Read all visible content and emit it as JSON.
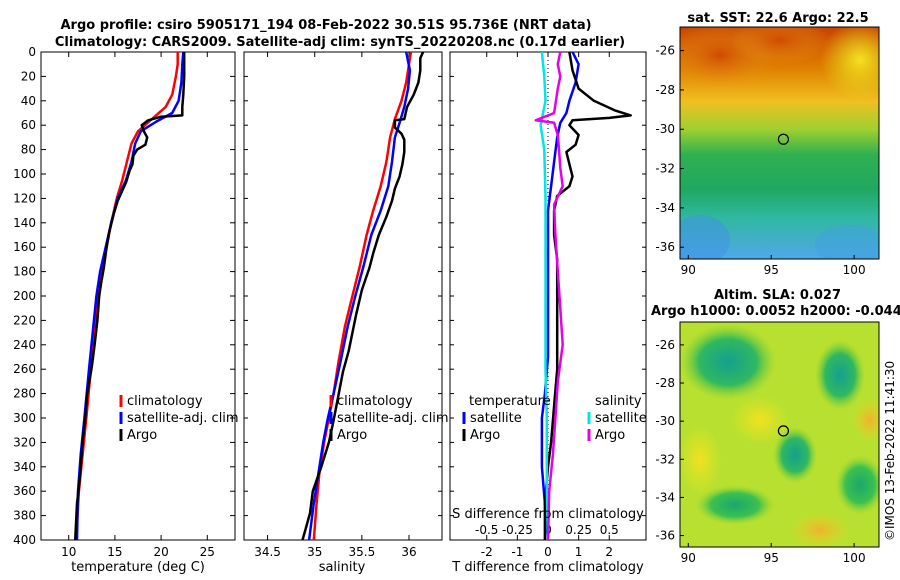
{
  "header": {
    "title_line1": "Argo profile: csiro 5905171_194 08-Feb-2022 30.51S 95.736E (NRT data)",
    "title_line2": "Climatology: CARS2009. Satellite-adj clim: synTS_20220208.nc (0.17d earlier)",
    "copyright": "©IMOS 13-Feb-2022 11:41:30"
  },
  "colors": {
    "climatology": "#ff0000",
    "satellite": "#0000ff",
    "argo": "#000000",
    "sat_s": "#00e5e5",
    "argo_s": "#e600e6"
  },
  "chart_data": [
    {
      "id": "temperature",
      "type": "line",
      "xlabel": "temperature (deg C)",
      "ylabel": "",
      "xlim": [
        7,
        28
      ],
      "ylim": [
        400,
        0
      ],
      "xticks": [
        10,
        15,
        20,
        25
      ],
      "yticks": [
        0,
        20,
        40,
        60,
        80,
        100,
        120,
        140,
        160,
        180,
        200,
        220,
        240,
        260,
        280,
        300,
        320,
        340,
        360,
        380,
        400
      ],
      "legend": {
        "placement": "right",
        "entries": [
          "climatology",
          "satellite-adj. clim",
          "Argo"
        ]
      },
      "series": [
        {
          "name": "climatology",
          "color": "#ff0000",
          "points": [
            [
              21.8,
              0
            ],
            [
              21.8,
              10
            ],
            [
              21.6,
              20
            ],
            [
              21.2,
              35
            ],
            [
              20.5,
              45
            ],
            [
              19.0,
              55
            ],
            [
              17.5,
              65
            ],
            [
              16.8,
              75
            ],
            [
              16.3,
              90
            ],
            [
              15.8,
              105
            ],
            [
              15.2,
              120
            ],
            [
              14.6,
              140
            ],
            [
              14.1,
              160
            ],
            [
              13.6,
              180
            ],
            [
              13.2,
              200
            ],
            [
              12.8,
              230
            ],
            [
              12.4,
              260
            ],
            [
              11.9,
              300
            ],
            [
              11.5,
              330
            ],
            [
              11.1,
              360
            ],
            [
              10.8,
              400
            ]
          ]
        },
        {
          "name": "satellite-adj. clim",
          "color": "#0000ff",
          "points": [
            [
              22.4,
              0
            ],
            [
              22.3,
              10
            ],
            [
              22.2,
              25
            ],
            [
              21.9,
              40
            ],
            [
              21.2,
              50
            ],
            [
              19.5,
              57
            ],
            [
              17.8,
              65
            ],
            [
              17.2,
              75
            ],
            [
              16.8,
              90
            ],
            [
              16.2,
              105
            ],
            [
              15.3,
              120
            ],
            [
              14.6,
              140
            ],
            [
              14.0,
              160
            ],
            [
              13.4,
              180
            ],
            [
              13.0,
              200
            ],
            [
              12.6,
              230
            ],
            [
              12.2,
              260
            ],
            [
              11.7,
              300
            ],
            [
              11.3,
              330
            ],
            [
              11.0,
              360
            ],
            [
              10.9,
              400
            ]
          ]
        },
        {
          "name": "Argo",
          "color": "#000000",
          "points": [
            [
              22.5,
              0
            ],
            [
              22.5,
              20
            ],
            [
              22.4,
              35
            ],
            [
              22.3,
              45
            ],
            [
              22.3,
              52
            ],
            [
              20.0,
              53
            ],
            [
              18.6,
              56
            ],
            [
              17.9,
              60
            ],
            [
              18.2,
              66
            ],
            [
              18.5,
              70
            ],
            [
              18.3,
              76
            ],
            [
              17.4,
              80
            ],
            [
              17.0,
              85
            ],
            [
              16.9,
              92
            ],
            [
              16.6,
              97
            ],
            [
              16.2,
              107
            ],
            [
              15.9,
              112
            ],
            [
              15.3,
              122
            ],
            [
              14.9,
              132
            ],
            [
              14.4,
              147
            ],
            [
              14.1,
              160
            ],
            [
              13.8,
              177
            ],
            [
              13.5,
              190
            ],
            [
              13.3,
              200
            ],
            [
              13.1,
              220
            ],
            [
              12.8,
              240
            ],
            [
              12.5,
              258
            ],
            [
              12.0,
              280
            ],
            [
              11.8,
              300
            ],
            [
              11.5,
              320
            ],
            [
              11.3,
              340
            ],
            [
              11.1,
              357
            ],
            [
              10.9,
              370
            ],
            [
              10.8,
              385
            ],
            [
              10.7,
              400
            ]
          ]
        }
      ]
    },
    {
      "id": "salinity",
      "type": "line",
      "xlabel": "salinity",
      "xlim": [
        34.25,
        36.35
      ],
      "ylim": [
        400,
        0
      ],
      "xticks": [
        34.5,
        35,
        35.5,
        36
      ],
      "xtick_labels": [
        "34.5",
        "35",
        "35.5",
        "36"
      ],
      "legend": {
        "placement": "right",
        "entries": [
          "climatology",
          "satellite-adj. clim",
          "Argo"
        ]
      },
      "series": [
        {
          "name": "climatology",
          "color": "#ff0000",
          "points": [
            [
              36.02,
              0
            ],
            [
              36.0,
              10
            ],
            [
              35.97,
              25
            ],
            [
              35.92,
              40
            ],
            [
              35.85,
              55
            ],
            [
              35.8,
              70
            ],
            [
              35.76,
              90
            ],
            [
              35.7,
              110
            ],
            [
              35.62,
              130
            ],
            [
              35.55,
              150
            ],
            [
              35.48,
              175
            ],
            [
              35.4,
              200
            ],
            [
              35.32,
              225
            ],
            [
              35.25,
              255
            ],
            [
              35.2,
              280
            ],
            [
              35.15,
              300
            ],
            [
              35.1,
              320
            ],
            [
              35.05,
              345
            ],
            [
              35.02,
              370
            ],
            [
              34.99,
              400
            ]
          ]
        },
        {
          "name": "satellite-adj. clim",
          "color": "#0000ff",
          "points": [
            [
              35.97,
              0
            ],
            [
              36.01,
              15
            ],
            [
              35.99,
              30
            ],
            [
              35.95,
              45
            ],
            [
              35.9,
              58
            ],
            [
              35.85,
              70
            ],
            [
              35.82,
              90
            ],
            [
              35.78,
              110
            ],
            [
              35.7,
              130
            ],
            [
              35.6,
              150
            ],
            [
              35.52,
              175
            ],
            [
              35.43,
              200
            ],
            [
              35.35,
              225
            ],
            [
              35.27,
              255
            ],
            [
              35.2,
              280
            ],
            [
              35.14,
              300
            ],
            [
              35.09,
              320
            ],
            [
              35.04,
              345
            ],
            [
              34.99,
              370
            ],
            [
              34.94,
              400
            ]
          ]
        },
        {
          "name": "Argo",
          "color": "#000000",
          "points": [
            [
              36.15,
              0
            ],
            [
              36.12,
              5
            ],
            [
              36.12,
              15
            ],
            [
              36.1,
              25
            ],
            [
              36.05,
              35
            ],
            [
              35.98,
              45
            ],
            [
              35.95,
              55
            ],
            [
              35.85,
              56
            ],
            [
              35.85,
              62
            ],
            [
              35.92,
              67
            ],
            [
              35.95,
              72
            ],
            [
              35.95,
              82
            ],
            [
              35.93,
              92
            ],
            [
              35.9,
              102
            ],
            [
              35.85,
              112
            ],
            [
              35.82,
              122
            ],
            [
              35.76,
              135
            ],
            [
              35.68,
              150
            ],
            [
              35.62,
              165
            ],
            [
              35.58,
              177
            ],
            [
              35.5,
              195
            ],
            [
              35.44,
              215
            ],
            [
              35.36,
              245
            ],
            [
              35.3,
              262
            ],
            [
              35.25,
              282
            ],
            [
              35.2,
              302
            ],
            [
              35.15,
              320
            ],
            [
              35.07,
              340
            ],
            [
              34.98,
              360
            ],
            [
              34.95,
              378
            ],
            [
              34.9,
              392
            ],
            [
              34.87,
              400
            ]
          ]
        }
      ]
    },
    {
      "id": "differences",
      "type": "line",
      "xlabel": "T difference from climatology",
      "top_xlabel": "S difference from climatology",
      "xlim": [
        -3.2,
        3.2
      ],
      "ylim": [
        400,
        0
      ],
      "xticks": [
        -2,
        -1,
        0,
        1,
        2
      ],
      "top_xticks": [
        -0.5,
        -0.25,
        0,
        0.25,
        0.5
      ],
      "top_xtick_labels": [
        "-0.5",
        "-0.25",
        "0",
        "0.25",
        "0.5"
      ],
      "top_xlim": [
        -0.8,
        0.8
      ],
      "legend_t": {
        "heading": "temperature",
        "entries": [
          "satellite",
          "Argo"
        ]
      },
      "legend_s": {
        "heading": "salinity",
        "entries": [
          "satellite",
          "Argo"
        ]
      },
      "series": [
        {
          "name": "T satellite",
          "color": "#0000ff",
          "axis": "T",
          "points": [
            [
              0.8,
              0
            ],
            [
              1.0,
              10
            ],
            [
              0.9,
              25
            ],
            [
              0.7,
              40
            ],
            [
              0.6,
              50
            ],
            [
              0.4,
              58
            ],
            [
              0.3,
              70
            ],
            [
              0.2,
              90
            ],
            [
              0.1,
              110
            ],
            [
              0.0,
              130
            ],
            [
              0.0,
              180
            ],
            [
              0.0,
              250
            ],
            [
              -0.1,
              280
            ],
            [
              -0.2,
              300
            ],
            [
              -0.2,
              340
            ],
            [
              -0.1,
              370
            ],
            [
              0.0,
              400
            ]
          ]
        },
        {
          "name": "T Argo",
          "color": "#000000",
          "axis": "T",
          "points": [
            [
              0.7,
              0
            ],
            [
              0.8,
              15
            ],
            [
              1.0,
              30
            ],
            [
              1.5,
              40
            ],
            [
              2.2,
              48
            ],
            [
              2.7,
              52
            ],
            [
              2.0,
              54
            ],
            [
              0.8,
              56
            ],
            [
              0.7,
              60
            ],
            [
              1.0,
              68
            ],
            [
              0.9,
              76
            ],
            [
              0.6,
              82
            ],
            [
              0.7,
              92
            ],
            [
              0.8,
              102
            ],
            [
              0.7,
              110
            ],
            [
              0.3,
              118
            ],
            [
              0.2,
              130
            ],
            [
              0.2,
              150
            ],
            [
              0.3,
              170
            ],
            [
              0.3,
              200
            ],
            [
              0.3,
              230
            ],
            [
              0.3,
              260
            ],
            [
              0.2,
              290
            ],
            [
              0.1,
              320
            ],
            [
              0.0,
              340
            ],
            [
              -0.1,
              370
            ],
            [
              -0.1,
              400
            ]
          ]
        },
        {
          "name": "S satellite",
          "color": "#00e5e5",
          "axis": "S",
          "points": [
            [
              -0.05,
              0
            ],
            [
              -0.03,
              20
            ],
            [
              -0.02,
              40
            ],
            [
              -0.06,
              60
            ],
            [
              -0.03,
              80
            ],
            [
              -0.02,
              120
            ],
            [
              -0.02,
              200
            ],
            [
              -0.02,
              260
            ],
            [
              -0.01,
              300
            ],
            [
              -0.01,
              360
            ],
            [
              0.0,
              400
            ]
          ]
        },
        {
          "name": "S Argo",
          "color": "#e600e6",
          "axis": "S",
          "points": [
            [
              0.1,
              0
            ],
            [
              0.08,
              10
            ],
            [
              0.1,
              20
            ],
            [
              0.08,
              30
            ],
            [
              0.05,
              50
            ],
            [
              -0.1,
              56
            ],
            [
              0.05,
              58
            ],
            [
              0.08,
              68
            ],
            [
              0.09,
              80
            ],
            [
              0.1,
              95
            ],
            [
              0.12,
              110
            ],
            [
              0.05,
              125
            ],
            [
              0.06,
              150
            ],
            [
              0.08,
              180
            ],
            [
              0.1,
              210
            ],
            [
              0.12,
              240
            ],
            [
              0.08,
              270
            ],
            [
              0.06,
              300
            ],
            [
              0.04,
              330
            ],
            [
              0.01,
              360
            ],
            [
              0.0,
              400
            ]
          ]
        }
      ]
    },
    {
      "id": "sst_map",
      "type": "heatmap",
      "title": "sat. SST: 22.6 Argo: 22.5",
      "xlim": [
        89.5,
        101.5
      ],
      "ylim": [
        -36.6,
        -24.8
      ],
      "xticks": [
        90,
        95,
        100
      ],
      "yticks": [
        -26,
        -28,
        -30,
        -32,
        -34,
        -36
      ],
      "marker": {
        "lon": 95.736,
        "lat": -30.51
      }
    },
    {
      "id": "sla_map",
      "type": "heatmap",
      "title_line1": "Altim. SLA: 0.027",
      "title_line2": "Argo h1000: 0.0052 h2000: -0.044",
      "xlim": [
        89.5,
        101.5
      ],
      "ylim": [
        -36.6,
        -24.8
      ],
      "xticks": [
        90,
        95,
        100
      ],
      "yticks": [
        -26,
        -28,
        -30,
        -32,
        -34,
        -36
      ],
      "marker": {
        "lon": 95.736,
        "lat": -30.51
      }
    }
  ]
}
